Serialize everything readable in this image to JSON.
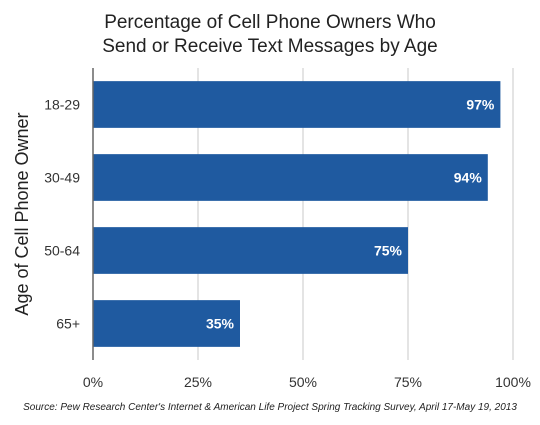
{
  "chart_data": {
    "type": "bar",
    "orientation": "horizontal",
    "title": "Percentage of Cell Phone Owners Who Send or Receive Text Messages by Age",
    "title_lines": [
      "Percentage of Cell Phone Owners Who",
      "Send or Receive Text Messages by Age"
    ],
    "categories": [
      "18-29",
      "30-49",
      "50-64",
      "65+"
    ],
    "values": [
      97,
      94,
      75,
      35
    ],
    "data_labels": [
      "97%",
      "94%",
      "75%",
      "35%"
    ],
    "xlabel": "",
    "ylabel": "Age of Cell Phone Owner",
    "xlim": [
      0,
      100
    ],
    "x_ticks": [
      0,
      25,
      50,
      75,
      100
    ],
    "x_tick_labels": [
      "0%",
      "25%",
      "50%",
      "75%",
      "100%"
    ],
    "grid": true,
    "legend": "none",
    "bar_color": "#1f5aa0",
    "source": "Source: Pew Research Center's Internet & American Life Project Spring Tracking Survey, April 17-May 19, 2013"
  }
}
